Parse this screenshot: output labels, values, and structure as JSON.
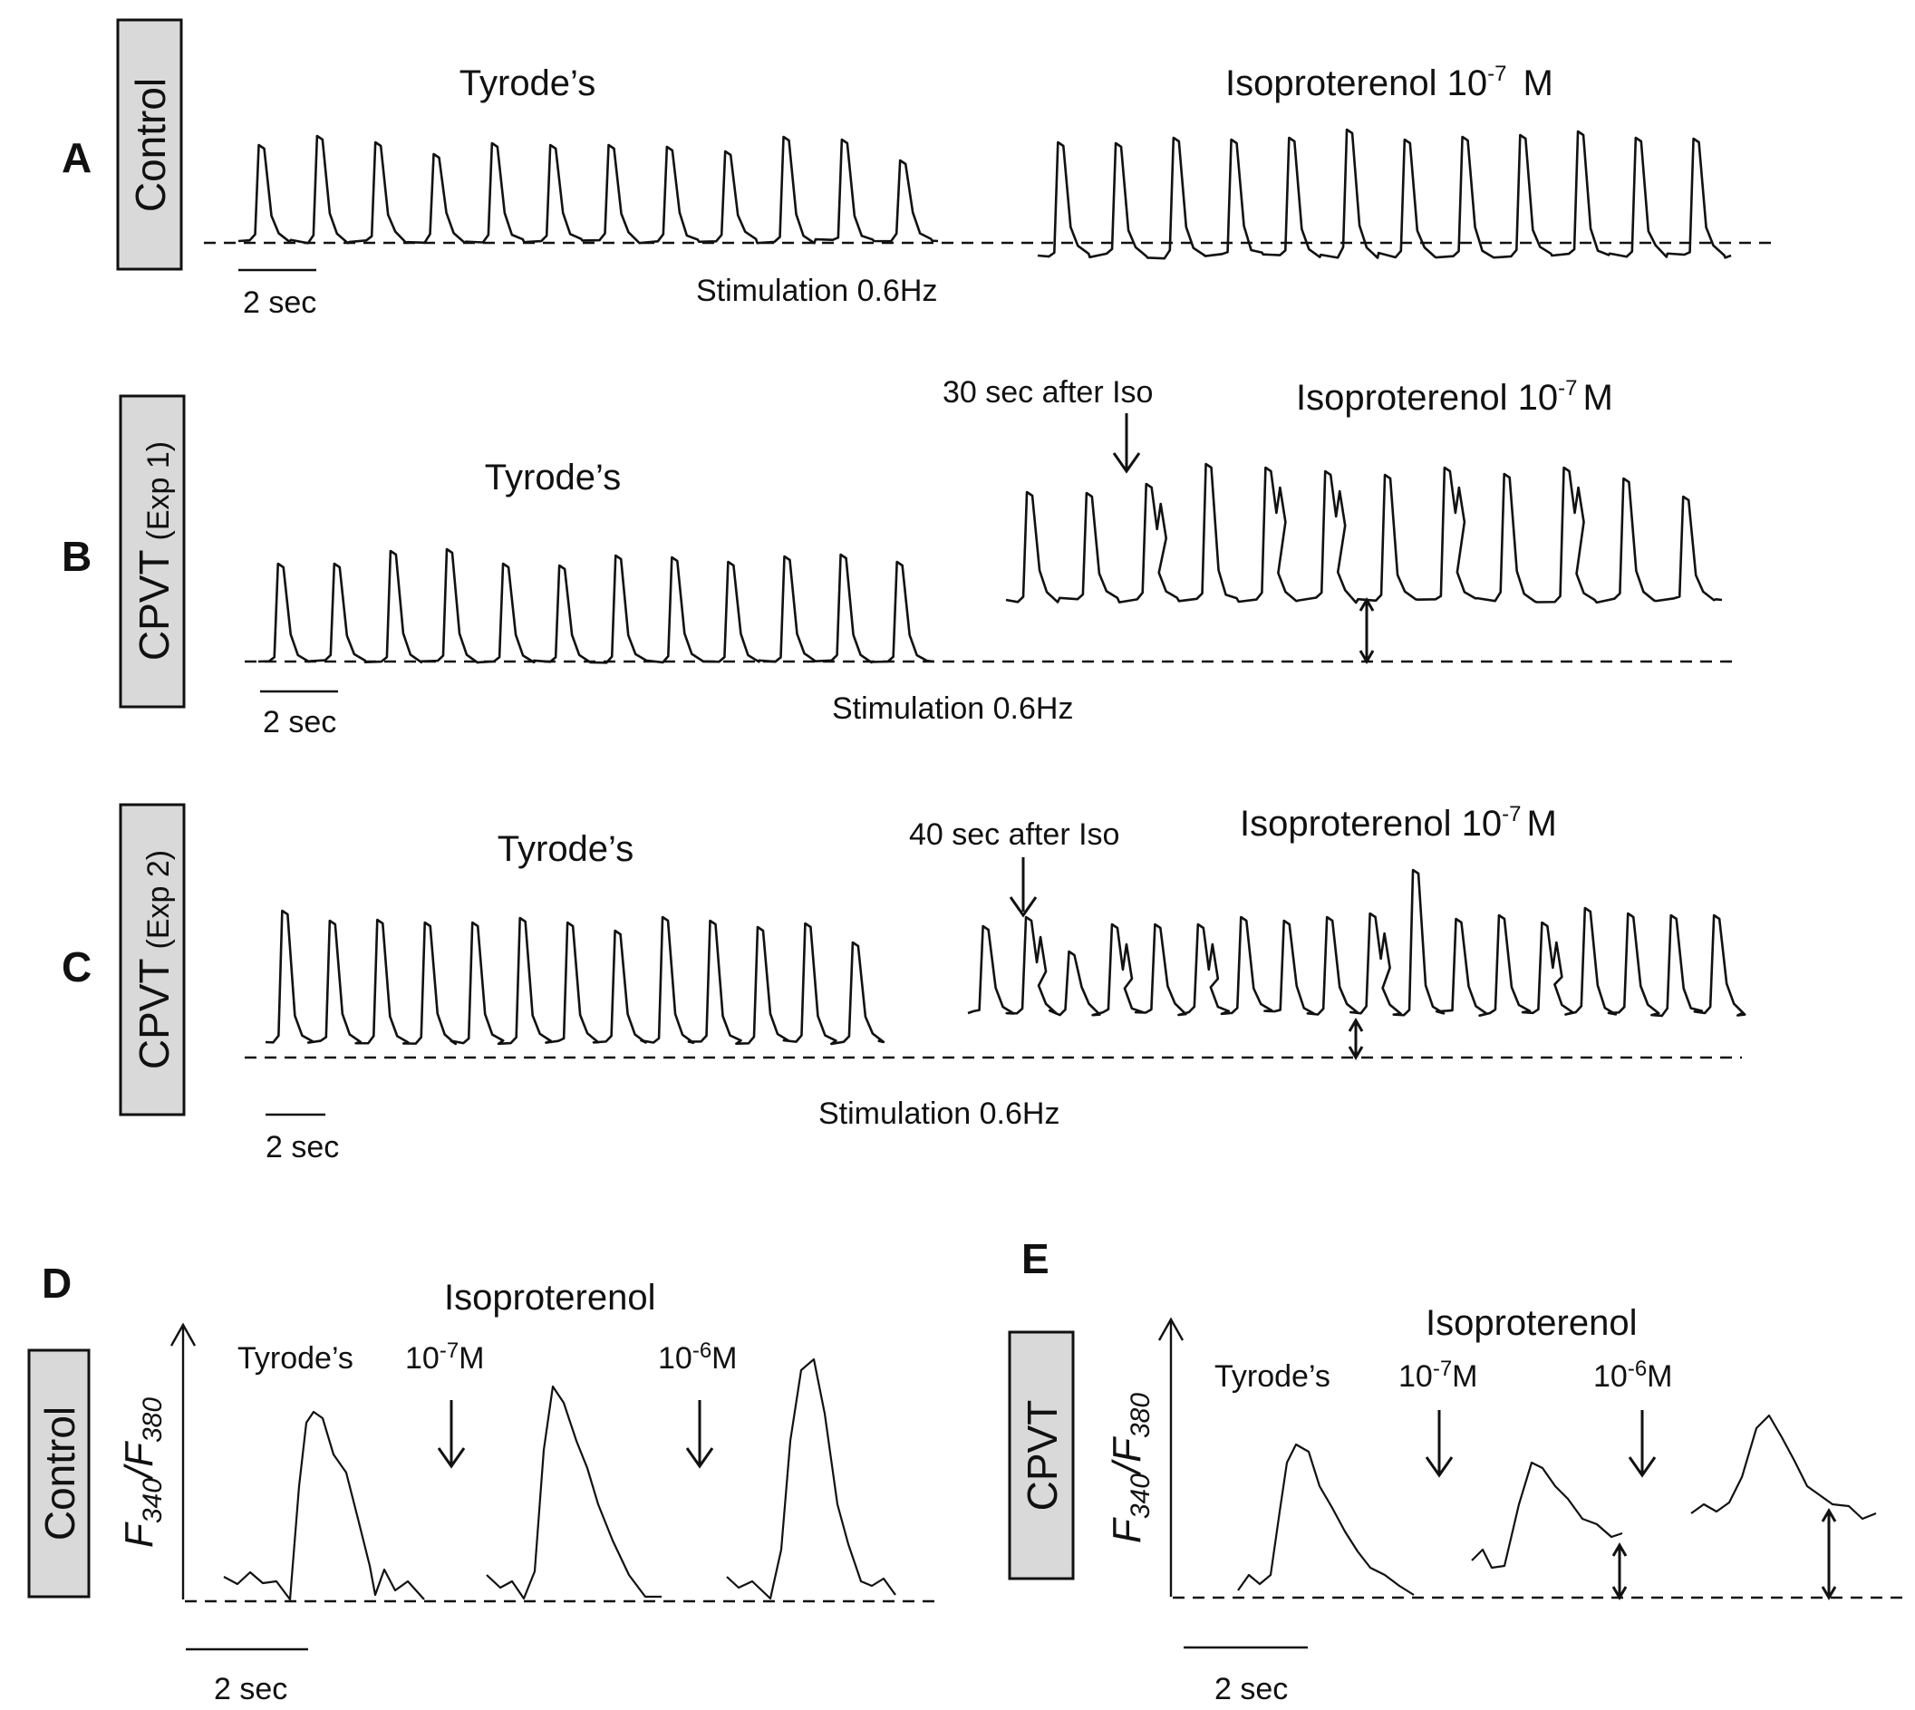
{
  "panels": {
    "A": {
      "letter": "A",
      "group": "Control",
      "left_condition": "Tyrode’s",
      "right_condition": "Isoproterenol 10",
      "right_exp": "-7",
      "right_unit": "M",
      "stimulation": "Stimulation 0.6Hz",
      "scale": "2 sec"
    },
    "B": {
      "letter": "B",
      "group": "CPVT",
      "group_sub": "(Exp 1)",
      "left_condition": "Tyrode’s",
      "annotation": "30 sec after Iso",
      "right_condition": "Isoproterenol  10",
      "right_exp": "-7",
      "right_unit": "M",
      "stimulation": "Stimulation 0.6Hz",
      "scale": "2 sec"
    },
    "C": {
      "letter": "C",
      "group": "CPVT",
      "group_sub": "(Exp 2)",
      "left_condition": "Tyrode’s",
      "annotation": "40 sec after Iso",
      "right_condition": "Isoproterenol  10",
      "right_exp": "-7",
      "right_unit": "M",
      "stimulation": "Stimulation 0.6Hz",
      "scale": "2 sec"
    },
    "D": {
      "letter": "D",
      "group": "Control",
      "title": "Isoproterenol",
      "y_main": "F",
      "y_sub1": "340",
      "y_slash": "/F",
      "y_sub2": "380",
      "cond1": "Tyrode’s",
      "cond2_base": "10",
      "cond2_exp": "-7",
      "cond2_unit": "M",
      "cond3_base": "10",
      "cond3_exp": "-6",
      "cond3_unit": "M",
      "scale": "2 sec"
    },
    "E": {
      "letter": "E",
      "group": "CPVT",
      "title": "Isoproterenol",
      "y_main": "F",
      "y_sub1": "340",
      "y_slash": "/F",
      "y_sub2": "380",
      "cond1": "Tyrode’s",
      "cond2_base": "10",
      "cond2_exp": "-7",
      "cond2_unit": "M",
      "cond3_base": "10",
      "cond3_exp": "-6",
      "cond3_unit": "M",
      "scale": "2 sec"
    }
  },
  "colors": {
    "ink": "#111111",
    "label_box": "#d9d9d9",
    "background": "#ffffff"
  }
}
